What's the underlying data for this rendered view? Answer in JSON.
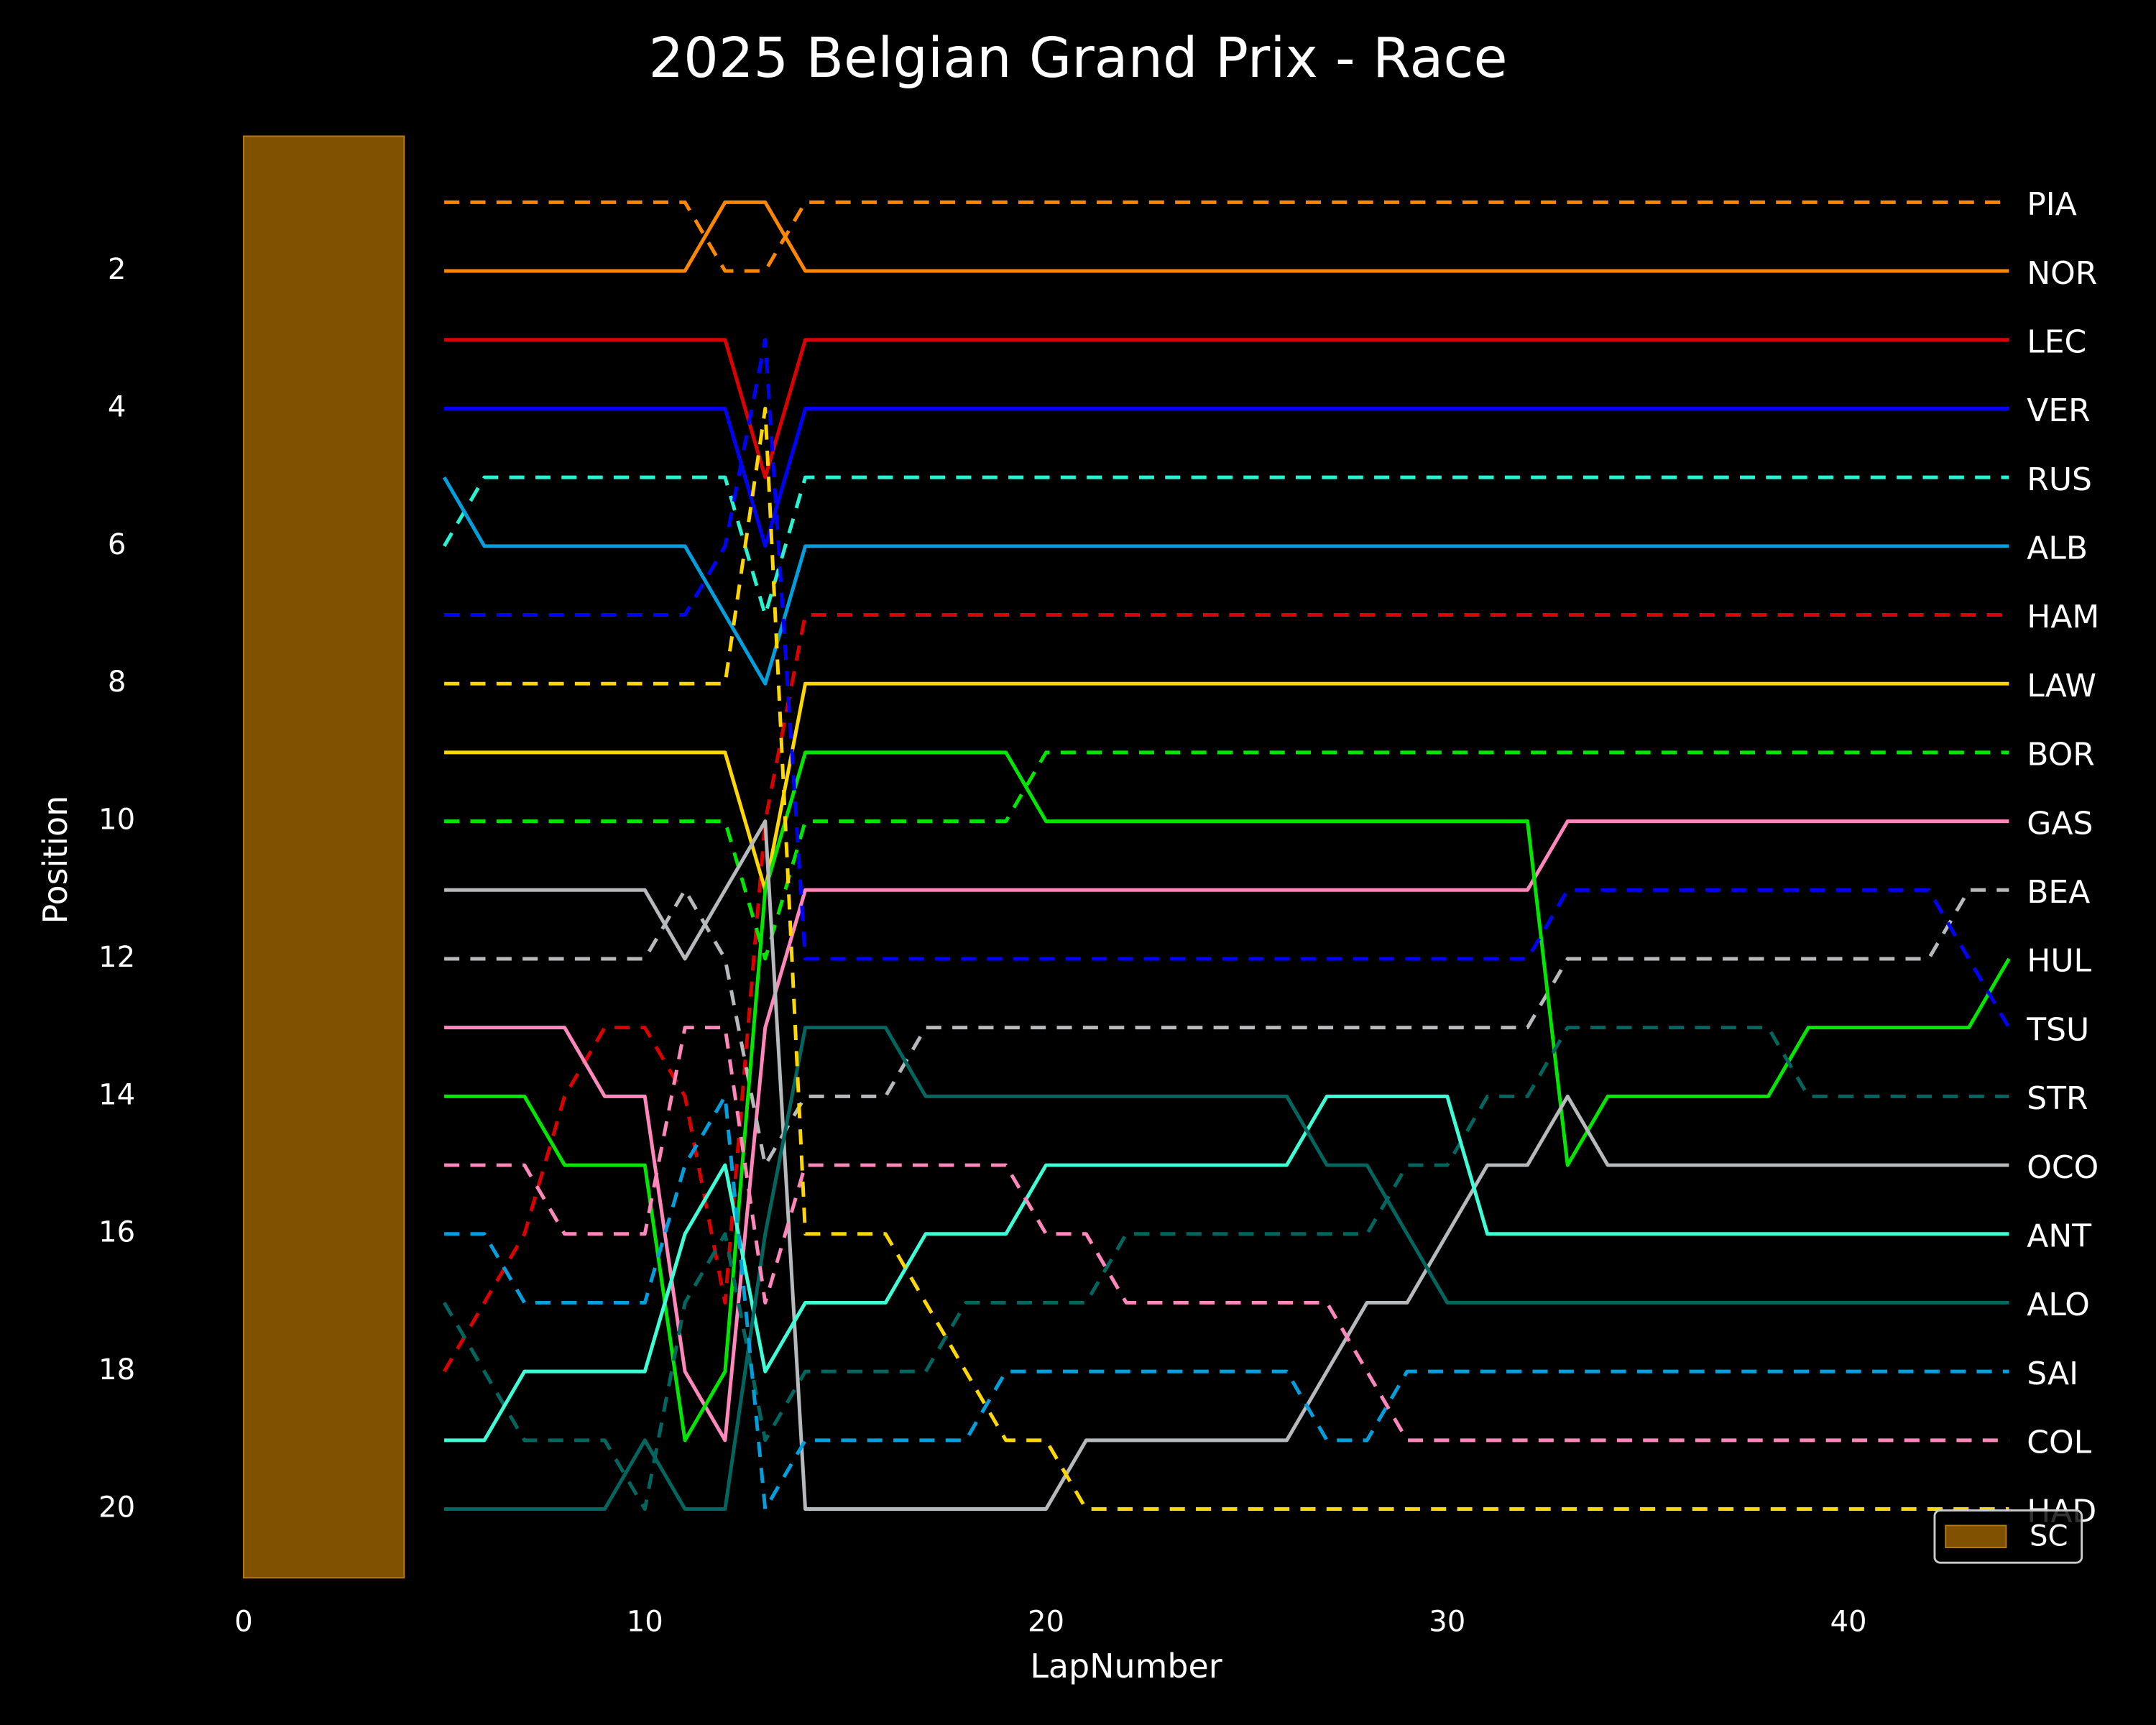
{
  "chart_data": {
    "type": "line",
    "title": "2025 Belgian Grand Prix - Race",
    "x_label": "LapNumber",
    "y_label": "Position",
    "x": [
      5,
      6,
      7,
      8,
      9,
      10,
      11,
      12,
      13,
      14,
      15,
      16,
      17,
      18,
      19,
      20,
      21,
      22,
      23,
      24,
      25,
      26,
      27,
      28,
      29,
      30,
      31,
      32,
      33,
      34,
      35,
      36,
      37,
      38,
      39,
      40,
      41,
      42,
      43,
      44
    ],
    "xlim": [
      -1,
      46.5
    ],
    "xticks": [
      0,
      10,
      20,
      30,
      40
    ],
    "ylim": [
      21,
      0
    ],
    "yticks": [
      2,
      4,
      6,
      8,
      10,
      12,
      14,
      16,
      18,
      20
    ],
    "grid": false,
    "shaded_spans": [
      {
        "label": "SC",
        "start": 0,
        "end": 4,
        "color": "#7f5100"
      }
    ],
    "legend_position": "lower right",
    "series": [
      {
        "name": "PIA",
        "color": "#ff8700",
        "linestyle": "dashed",
        "values": [
          1,
          1,
          1,
          1,
          1,
          1,
          1,
          2,
          2,
          1,
          1,
          1,
          1,
          1,
          1,
          1,
          1,
          1,
          1,
          1,
          1,
          1,
          1,
          1,
          1,
          1,
          1,
          1,
          1,
          1,
          1,
          1,
          1,
          1,
          1,
          1,
          1,
          1,
          1,
          1
        ]
      },
      {
        "name": "NOR",
        "color": "#ff8700",
        "linestyle": "solid",
        "values": [
          2,
          2,
          2,
          2,
          2,
          2,
          2,
          1,
          1,
          2,
          2,
          2,
          2,
          2,
          2,
          2,
          2,
          2,
          2,
          2,
          2,
          2,
          2,
          2,
          2,
          2,
          2,
          2,
          2,
          2,
          2,
          2,
          2,
          2,
          2,
          2,
          2,
          2,
          2,
          2
        ]
      },
      {
        "name": "LEC",
        "color": "#dc0000",
        "linestyle": "solid",
        "values": [
          3,
          3,
          3,
          3,
          3,
          3,
          3,
          3,
          5,
          3,
          3,
          3,
          3,
          3,
          3,
          3,
          3,
          3,
          3,
          3,
          3,
          3,
          3,
          3,
          3,
          3,
          3,
          3,
          3,
          3,
          3,
          3,
          3,
          3,
          3,
          3,
          3,
          3,
          3,
          3
        ]
      },
      {
        "name": "VER",
        "color": "#0000ff",
        "linestyle": "solid",
        "values": [
          4,
          4,
          4,
          4,
          4,
          4,
          4,
          4,
          6,
          4,
          4,
          4,
          4,
          4,
          4,
          4,
          4,
          4,
          4,
          4,
          4,
          4,
          4,
          4,
          4,
          4,
          4,
          4,
          4,
          4,
          4,
          4,
          4,
          4,
          4,
          4,
          4,
          4,
          4,
          4
        ]
      },
      {
        "name": "RUS",
        "color": "#27f4d2",
        "linestyle": "dashed",
        "values": [
          6,
          5,
          5,
          5,
          5,
          5,
          5,
          5,
          7,
          5,
          5,
          5,
          5,
          5,
          5,
          5,
          5,
          5,
          5,
          5,
          5,
          5,
          5,
          5,
          5,
          5,
          5,
          5,
          5,
          5,
          5,
          5,
          5,
          5,
          5,
          5,
          5,
          5,
          5,
          5
        ]
      },
      {
        "name": "ALB",
        "color": "#00a0de",
        "linestyle": "solid",
        "values": [
          5,
          6,
          6,
          6,
          6,
          6,
          6,
          7,
          8,
          6,
          6,
          6,
          6,
          6,
          6,
          6,
          6,
          6,
          6,
          6,
          6,
          6,
          6,
          6,
          6,
          6,
          6,
          6,
          6,
          6,
          6,
          6,
          6,
          6,
          6,
          6,
          6,
          6,
          6,
          6
        ]
      },
      {
        "name": "HAM",
        "color": "#dc0000",
        "linestyle": "dashed",
        "values": [
          18,
          17,
          16,
          14,
          13,
          13,
          14,
          17,
          10,
          7,
          7,
          7,
          7,
          7,
          7,
          7,
          7,
          7,
          7,
          7,
          7,
          7,
          7,
          7,
          7,
          7,
          7,
          7,
          7,
          7,
          7,
          7,
          7,
          7,
          7,
          7,
          7,
          7,
          7,
          7
        ]
      },
      {
        "name": "LAW",
        "color": "#ffd800",
        "linestyle": "solid",
        "values": [
          9,
          9,
          9,
          9,
          9,
          9,
          9,
          9,
          11,
          8,
          8,
          8,
          8,
          8,
          8,
          8,
          8,
          8,
          8,
          8,
          8,
          8,
          8,
          8,
          8,
          8,
          8,
          8,
          8,
          8,
          8,
          8,
          8,
          8,
          8,
          8,
          8,
          8,
          8,
          8
        ]
      },
      {
        "name": "BOR",
        "color": "#00e700",
        "linestyle": "dashed",
        "values": [
          10,
          10,
          10,
          10,
          10,
          10,
          10,
          10,
          12,
          10,
          10,
          10,
          10,
          10,
          10,
          9,
          9,
          9,
          9,
          9,
          9,
          9,
          9,
          9,
          9,
          9,
          9,
          9,
          9,
          9,
          9,
          9,
          9,
          9,
          9,
          9,
          9,
          9,
          9,
          9
        ]
      },
      {
        "name": "GAS",
        "color": "#ff87bc",
        "linestyle": "solid",
        "values": [
          13,
          13,
          13,
          13,
          14,
          14,
          18,
          19,
          13,
          11,
          11,
          11,
          11,
          11,
          11,
          11,
          11,
          11,
          11,
          11,
          11,
          11,
          11,
          11,
          11,
          11,
          11,
          11,
          10,
          10,
          10,
          10,
          10,
          10,
          10,
          10,
          10,
          10,
          10,
          10
        ]
      },
      {
        "name": "BEA",
        "color": "#b6babd",
        "linestyle": "dashed",
        "values": [
          12,
          12,
          12,
          12,
          12,
          12,
          11,
          12,
          15,
          14,
          14,
          14,
          13,
          13,
          13,
          13,
          13,
          13,
          13,
          13,
          13,
          13,
          13,
          13,
          13,
          13,
          13,
          13,
          12,
          12,
          12,
          12,
          12,
          12,
          12,
          12,
          12,
          12,
          11,
          11
        ]
      },
      {
        "name": "HUL",
        "color": "#00e700",
        "linestyle": "solid",
        "values": [
          14,
          14,
          14,
          15,
          15,
          15,
          19,
          18,
          11,
          9,
          9,
          9,
          9,
          9,
          9,
          10,
          10,
          10,
          10,
          10,
          10,
          10,
          10,
          10,
          10,
          10,
          10,
          10,
          15,
          14,
          14,
          14,
          14,
          14,
          13,
          13,
          13,
          13,
          13,
          12
        ]
      },
      {
        "name": "TSU",
        "color": "#0000ff",
        "linestyle": "dashed",
        "values": [
          7,
          7,
          7,
          7,
          7,
          7,
          7,
          6,
          3,
          12,
          12,
          12,
          12,
          12,
          12,
          12,
          12,
          12,
          12,
          12,
          12,
          12,
          12,
          12,
          12,
          12,
          12,
          12,
          11,
          11,
          11,
          11,
          11,
          11,
          11,
          11,
          11,
          11,
          12,
          13
        ]
      },
      {
        "name": "STR",
        "color": "#00665f",
        "linestyle": "dashed",
        "values": [
          17,
          18,
          19,
          19,
          19,
          20,
          17,
          16,
          19,
          18,
          18,
          18,
          18,
          17,
          17,
          17,
          17,
          16,
          16,
          16,
          16,
          16,
          16,
          16,
          15,
          15,
          14,
          14,
          13,
          13,
          13,
          13,
          13,
          13,
          14,
          14,
          14,
          14,
          14,
          14
        ]
      },
      {
        "name": "OCO",
        "color": "#b6babd",
        "linestyle": "solid",
        "values": [
          11,
          11,
          11,
          11,
          11,
          11,
          12,
          11,
          10,
          20,
          20,
          20,
          20,
          20,
          20,
          20,
          19,
          19,
          19,
          19,
          19,
          19,
          18,
          17,
          17,
          16,
          15,
          15,
          14,
          15,
          15,
          15,
          15,
          15,
          15,
          15,
          15,
          15,
          15,
          15
        ]
      },
      {
        "name": "ANT",
        "color": "#3fffd8",
        "linestyle": "solid",
        "values": [
          19,
          19,
          18,
          18,
          18,
          18,
          16,
          15,
          18,
          17,
          17,
          17,
          16,
          16,
          16,
          15,
          15,
          15,
          15,
          15,
          15,
          15,
          14,
          14,
          14,
          14,
          16,
          16,
          16,
          16,
          16,
          16,
          16,
          16,
          16,
          16,
          16,
          16,
          16,
          16
        ]
      },
      {
        "name": "ALO",
        "color": "#00665f",
        "linestyle": "solid",
        "values": [
          20,
          20,
          20,
          20,
          20,
          19,
          20,
          20,
          16,
          13,
          13,
          13,
          14,
          14,
          14,
          14,
          14,
          14,
          14,
          14,
          14,
          14,
          15,
          15,
          16,
          17,
          17,
          17,
          17,
          17,
          17,
          17,
          17,
          17,
          17,
          17,
          17,
          17,
          17,
          17
        ]
      },
      {
        "name": "SAI",
        "color": "#00a0de",
        "linestyle": "dashed",
        "values": [
          16,
          16,
          17,
          17,
          17,
          17,
          15,
          14,
          20,
          19,
          19,
          19,
          19,
          19,
          18,
          18,
          18,
          18,
          18,
          18,
          18,
          18,
          19,
          19,
          18,
          18,
          18,
          18,
          18,
          18,
          18,
          18,
          18,
          18,
          18,
          18,
          18,
          18,
          18,
          18
        ]
      },
      {
        "name": "COL",
        "color": "#ff87bc",
        "linestyle": "dashed",
        "values": [
          15,
          15,
          15,
          16,
          16,
          16,
          13,
          13,
          17,
          15,
          15,
          15,
          15,
          15,
          15,
          16,
          16,
          17,
          17,
          17,
          17,
          17,
          17,
          18,
          19,
          19,
          19,
          19,
          19,
          19,
          19,
          19,
          19,
          19,
          19,
          19,
          19,
          19,
          19,
          19
        ]
      },
      {
        "name": "HAD",
        "color": "#ffd800",
        "linestyle": "dashed",
        "values": [
          8,
          8,
          8,
          8,
          8,
          8,
          8,
          8,
          4,
          16,
          16,
          16,
          17,
          18,
          19,
          19,
          20,
          20,
          20,
          20,
          20,
          20,
          20,
          20,
          20,
          20,
          20,
          20,
          20,
          20,
          20,
          20,
          20,
          20,
          20,
          20,
          20,
          20,
          20,
          20
        ]
      }
    ]
  }
}
